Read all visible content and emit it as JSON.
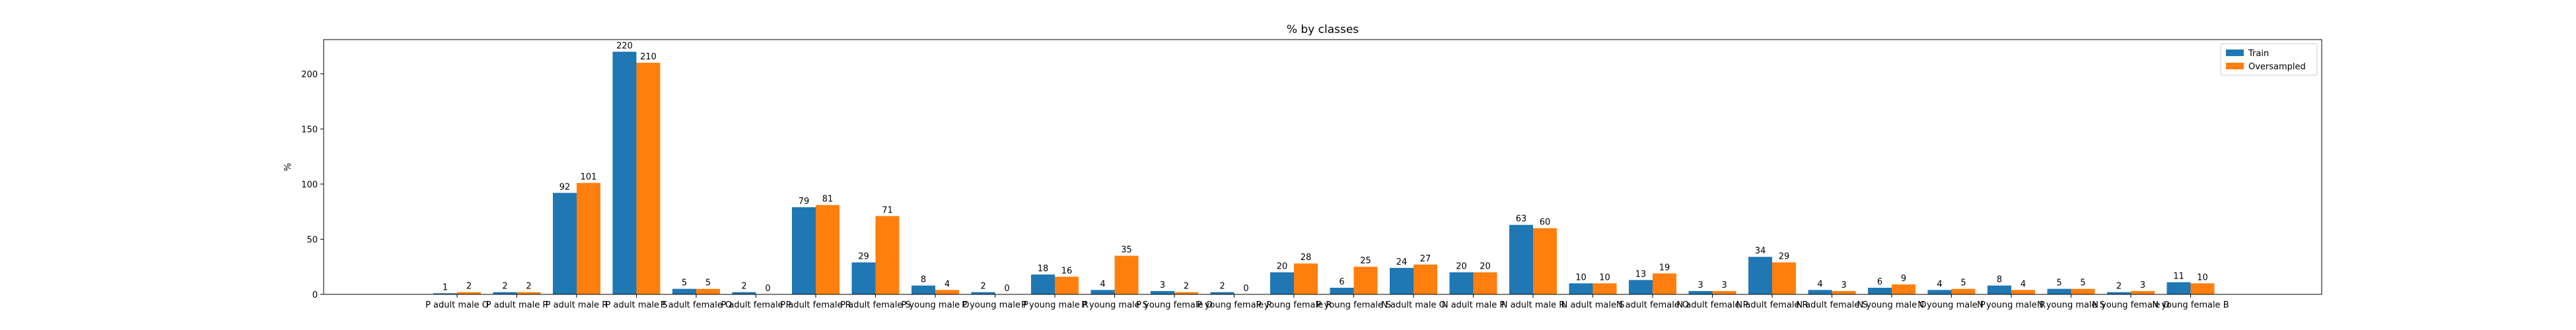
{
  "chart_data": {
    "type": "bar",
    "title": "% by classes",
    "xlabel": "",
    "ylabel": "%",
    "ylim": [
      0,
      231
    ],
    "yticks": [
      0,
      50,
      100,
      150,
      200
    ],
    "grid": false,
    "legend_position": "top-right",
    "categories": [
      "P adult male O",
      "P adult male P",
      "P adult male R",
      "P adult male S",
      "P adult female O",
      "P adult female P",
      "P adult female R",
      "P adult female S",
      "P young male O",
      "P young male P",
      "P young male R",
      "P young male S",
      "P young female O",
      "P young female P",
      "P young female R",
      "P young female S",
      "N adult male O",
      "N adult male P",
      "N adult male R",
      "N adult male S",
      "N adult female O",
      "N adult female P",
      "N adult female R",
      "N adult female S",
      "N young male O",
      "N young male P",
      "N young male R",
      "N young male S",
      "N young female O",
      "N young female B"
    ],
    "series": [
      {
        "name": "Train",
        "color": "#1f77b4",
        "values": [
          1,
          2,
          92,
          220,
          5,
          2,
          79,
          29,
          8,
          2,
          18,
          4,
          3,
          2,
          20,
          6,
          24,
          20,
          63,
          10,
          13,
          3,
          34,
          4,
          6,
          4,
          8,
          5,
          2,
          11
        ]
      },
      {
        "name": "Oversampled",
        "color": "#ff7f0e",
        "values": [
          2,
          2,
          101,
          210,
          5,
          0,
          81,
          71,
          4,
          0,
          16,
          35,
          2,
          0,
          28,
          25,
          27,
          20,
          60,
          10,
          19,
          3,
          29,
          3,
          9,
          5,
          4,
          5,
          3,
          10
        ]
      }
    ]
  }
}
